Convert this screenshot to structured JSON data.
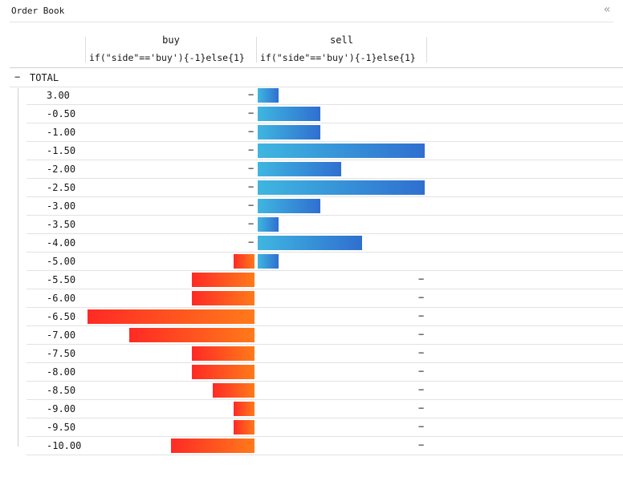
{
  "panel": {
    "title": "Order Book",
    "collapse_icon": "double-chevron-left-icon"
  },
  "columns": [
    {
      "label": "buy",
      "expression": "if(\"side\"=='buy'){-1}else{1}"
    },
    {
      "label": "sell",
      "expression": "if(\"side\"=='buy'){-1}else{1}"
    }
  ],
  "total": {
    "toggle": "−",
    "label": "TOTAL"
  },
  "empty_marker": "−",
  "max_abs": 8,
  "colors": {
    "buy_start": "#ff2a25",
    "buy_end": "#ff7a1a",
    "sell_start": "#3fb6e0",
    "sell_end": "#2f6fd0"
  },
  "rows": [
    {
      "label": "3.00",
      "buy": null,
      "sell": 1
    },
    {
      "label": "-0.50",
      "buy": null,
      "sell": 3
    },
    {
      "label": "-1.00",
      "buy": null,
      "sell": 3
    },
    {
      "label": "-1.50",
      "buy": null,
      "sell": 8
    },
    {
      "label": "-2.00",
      "buy": null,
      "sell": 4
    },
    {
      "label": "-2.50",
      "buy": null,
      "sell": 8
    },
    {
      "label": "-3.00",
      "buy": null,
      "sell": 3
    },
    {
      "label": "-3.50",
      "buy": null,
      "sell": 1
    },
    {
      "label": "-4.00",
      "buy": null,
      "sell": 5
    },
    {
      "label": "-5.00",
      "buy": -1,
      "sell": 1
    },
    {
      "label": "-5.50",
      "buy": -3,
      "sell": null
    },
    {
      "label": "-6.00",
      "buy": -3,
      "sell": null
    },
    {
      "label": "-6.50",
      "buy": -8,
      "sell": null
    },
    {
      "label": "-7.00",
      "buy": -6,
      "sell": null
    },
    {
      "label": "-7.50",
      "buy": -3,
      "sell": null
    },
    {
      "label": "-8.00",
      "buy": -3,
      "sell": null
    },
    {
      "label": "-8.50",
      "buy": -2,
      "sell": null
    },
    {
      "label": "-9.00",
      "buy": -1,
      "sell": null
    },
    {
      "label": "-9.50",
      "buy": -1,
      "sell": null
    },
    {
      "label": "-10.00",
      "buy": -4,
      "sell": null
    }
  ]
}
